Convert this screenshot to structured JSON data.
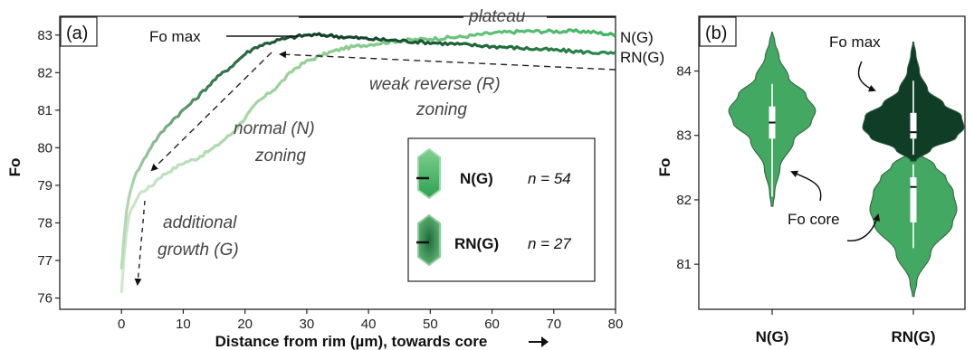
{
  "chart_data": [
    {
      "panel": "(a)",
      "type": "line",
      "xlabel": "Distance from rim (µm), towards core",
      "ylabel": "Fo",
      "xlim": [
        -10,
        80
      ],
      "ylim": [
        75.7,
        83.5
      ],
      "xticks": [
        0,
        10,
        20,
        30,
        40,
        50,
        60,
        70,
        80
      ],
      "yticks": [
        76,
        77,
        78,
        79,
        80,
        81,
        82,
        83
      ],
      "series": [
        {
          "name": "N(G)",
          "color": "#3db35f",
          "gradient_from": "#cde8cc",
          "x": [
            0,
            0.5,
            1,
            2,
            3,
            4,
            5,
            6,
            8,
            10,
            12,
            15,
            18,
            20,
            22,
            25,
            28,
            30,
            33,
            36,
            40,
            45,
            50,
            55,
            60,
            65,
            70,
            75,
            80
          ],
          "y": [
            76.1,
            77.3,
            78.1,
            78.5,
            78.8,
            78.9,
            79.0,
            79.2,
            79.4,
            79.6,
            79.7,
            80.0,
            80.4,
            80.8,
            81.2,
            81.6,
            82.1,
            82.3,
            82.5,
            82.65,
            82.75,
            82.85,
            82.9,
            82.95,
            83.05,
            83.1,
            83.1,
            83.1,
            83.0
          ]
        },
        {
          "name": "RN(G)",
          "color": "#2e8b4e",
          "gradient_from": "#0f3d26",
          "x": [
            0,
            0.5,
            1,
            2,
            3,
            4,
            5,
            6,
            8,
            10,
            12,
            15,
            18,
            20,
            22,
            25,
            28,
            30,
            33,
            36,
            40,
            45,
            50,
            55,
            60,
            65,
            70,
            75,
            80
          ],
          "y": [
            76.8,
            77.8,
            78.6,
            79.2,
            79.5,
            79.8,
            80.1,
            80.3,
            80.7,
            81.0,
            81.3,
            81.8,
            82.2,
            82.5,
            82.7,
            82.85,
            82.95,
            83.0,
            83.0,
            82.95,
            82.9,
            82.85,
            82.8,
            82.75,
            82.7,
            82.65,
            82.6,
            82.55,
            82.5
          ]
        }
      ],
      "line_end_labels": [
        "N(G)",
        "RN(G)"
      ],
      "annotations": {
        "fo_max": "Fo max",
        "plateau": "plateau",
        "weak_reverse_1": "weak reverse (R)",
        "weak_reverse_2": "zoning",
        "normal_1": "normal (N)",
        "normal_2": "zoning",
        "additional_1": "additional",
        "additional_2": "growth (G)"
      },
      "legend": {
        "placement": "bottom-right",
        "entries": [
          {
            "label": "N(G)",
            "n_label": "n = 54",
            "color": "#3db35f"
          },
          {
            "label": "RN(G)",
            "n_label": "n = 27",
            "color": "#2e8b4e"
          }
        ]
      }
    },
    {
      "panel": "(b)",
      "type": "violin",
      "ylabel": "Fo",
      "ylim": [
        80.3,
        84.85
      ],
      "yticks": [
        81,
        82,
        83,
        84
      ],
      "categories": [
        "N(G)",
        "RN(G)"
      ],
      "violins": [
        {
          "name": "N(G)",
          "color": "#43a862",
          "min": 81.9,
          "max": 84.6,
          "median": 83.2,
          "q1": 82.95,
          "q3": 83.45,
          "whisker_low": 82.05,
          "whisker_high": 83.8
        },
        {
          "name": "RN(G) core",
          "color": "#43a862",
          "min": 80.5,
          "max": 82.75,
          "median": 82.2,
          "q1": 81.65,
          "q3": 82.35,
          "whisker_low": 81.25,
          "whisker_high": 82.55
        },
        {
          "name": "RN(G) max",
          "color": "#0f3d26",
          "min": 82.6,
          "max": 84.45,
          "median": 83.05,
          "q1": 82.95,
          "q3": 83.35,
          "whisker_low": 82.7,
          "whisker_high": 83.85
        }
      ],
      "annotations": {
        "fo_max": "Fo max",
        "fo_core": "Fo core"
      }
    }
  ]
}
